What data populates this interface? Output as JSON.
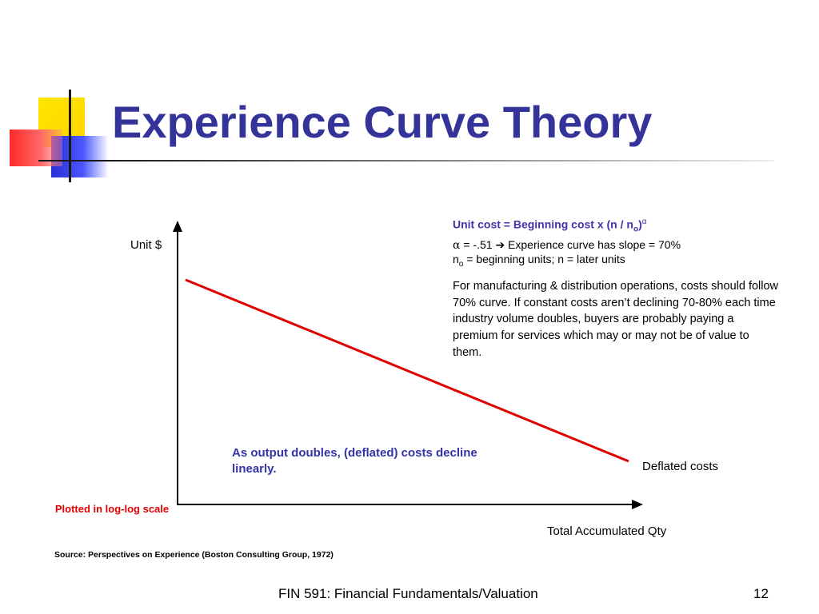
{
  "slide": {
    "title": "Experience Curve Theory",
    "colors": {
      "title": "#33339a",
      "curve": "#e00000",
      "accent_text": "#3333aa"
    }
  },
  "diagram": {
    "y_axis_label": "Unit $",
    "x_axis_label": "Total Accumulated Qty",
    "curve_label": "Deflated costs",
    "scale_note": "Plotted in log-log scale",
    "output_note": "As output doubles, (deflated) costs decline linearly."
  },
  "formula": {
    "prefix": "Unit cost = Beginning cost x (n / n",
    "sub": "o",
    "close": ")",
    "exponent": "α"
  },
  "alpha_line": {
    "symbol": "α",
    "value_text": " = -.51 ",
    "arrow": "➔",
    "rest": " Experience curve has slope = 70%"
  },
  "n_line": {
    "n": "n",
    "sub": "o",
    "rest": " = beginning units; n = later units"
  },
  "paragraph": "For manufacturing & distribution operations, costs should follow 70% curve. If constant costs aren’t declining 70-80% each time industry volume doubles, buyers are probably paying a premium for services which may or may not be of value to them.",
  "source": "Source: Perspectives on Experience (Boston Consulting Group, 1972)",
  "footer": {
    "course": "FIN 591: Financial Fundamentals/Valuation",
    "page": "12"
  }
}
